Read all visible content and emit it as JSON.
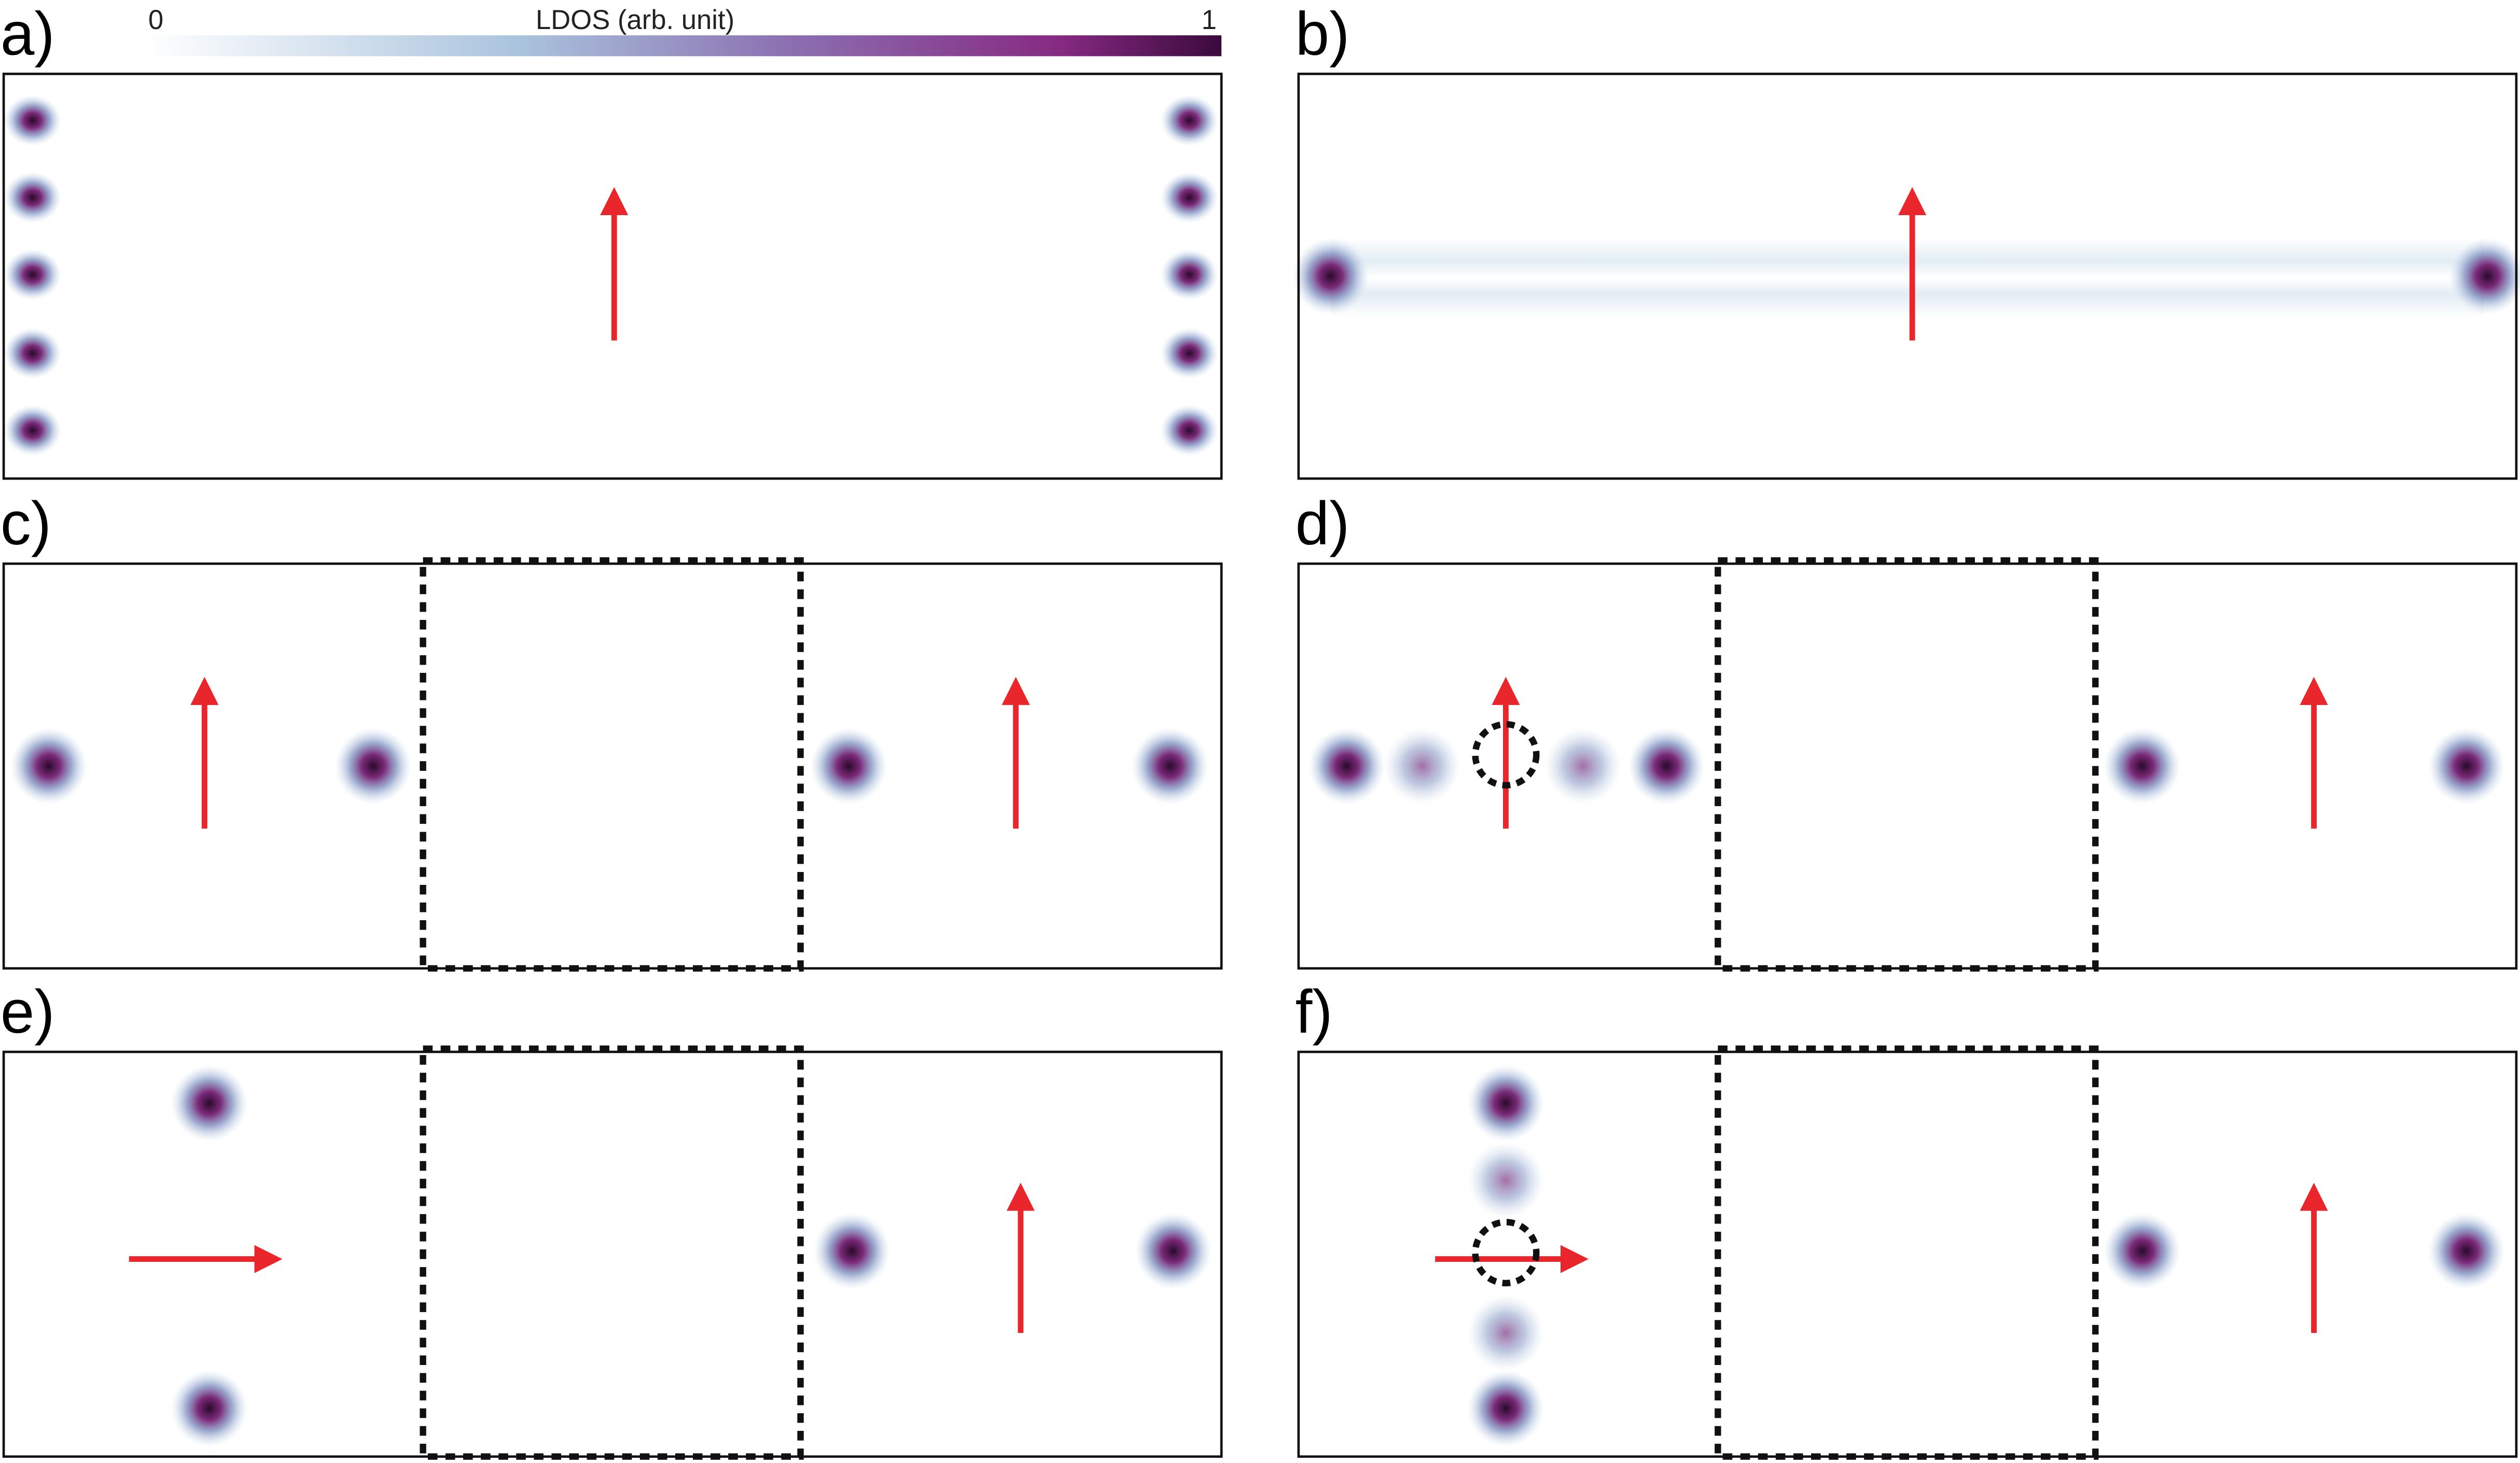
{
  "colorbar": {
    "min": 0,
    "title": "LDOS (arb. unit)",
    "max": 1
  },
  "panels": [
    {
      "label": "a)"
    },
    {
      "label": "b)"
    },
    {
      "label": "c)"
    },
    {
      "label": "d)"
    },
    {
      "label": "e)"
    },
    {
      "label": "f)"
    }
  ]
}
